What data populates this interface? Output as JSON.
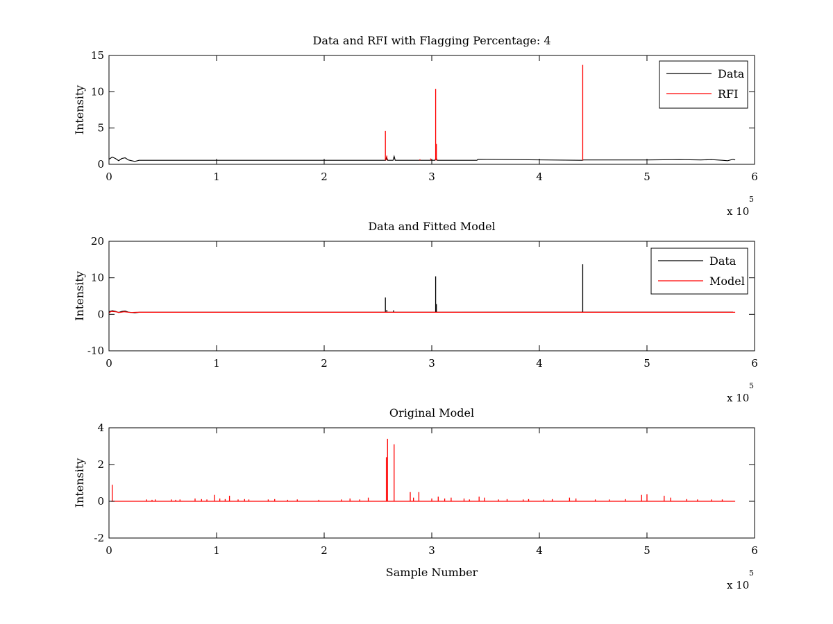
{
  "figure": {
    "background": "#ffffff",
    "axis_color": "#000000"
  },
  "chart_data": [
    {
      "type": "line",
      "title": "Data and RFI with Flagging Percentage: 4",
      "xlabel": "",
      "ylabel": "Intensity",
      "xlim": [
        0,
        600000
      ],
      "ylim": [
        0,
        15
      ],
      "xticks": [
        0,
        1,
        2,
        3,
        4,
        5,
        6
      ],
      "yticks": [
        0,
        5,
        10,
        15
      ],
      "x_exponent": {
        "base": "x 10",
        "power": "5"
      },
      "grid": false,
      "legend": "top-right",
      "series": [
        {
          "name": "Data",
          "color": "#000000",
          "baseline": 0.55,
          "x": [
            0,
            3000,
            6000,
            9000,
            12000,
            15000,
            18000,
            21000,
            24000,
            28000,
            257000,
            258000,
            259000,
            264000,
            265000,
            266000,
            303000,
            304000,
            305000,
            342000,
            343000,
            440000,
            441000,
            500000,
            530000,
            550000,
            560000,
            570000,
            575000,
            580000,
            582000
          ],
          "y": [
            0.7,
            1.0,
            0.8,
            0.5,
            0.8,
            0.9,
            0.6,
            0.5,
            0.4,
            0.55,
            0.55,
            1.0,
            0.55,
            0.55,
            1.1,
            0.55,
            0.55,
            0.9,
            0.55,
            0.55,
            0.7,
            0.55,
            0.6,
            0.6,
            0.65,
            0.6,
            0.65,
            0.55,
            0.5,
            0.7,
            0.6
          ]
        },
        {
          "name": "RFI",
          "color": "#ff0000",
          "spikes": [
            {
              "x": 256900,
              "y": 4.6
            },
            {
              "x": 258200,
              "y": 1.2
            },
            {
              "x": 303600,
              "y": 10.4
            },
            {
              "x": 304300,
              "y": 2.8
            },
            {
              "x": 440300,
              "y": 13.7
            },
            {
              "x": 289000,
              "y": 0.7
            },
            {
              "x": 299000,
              "y": 0.8
            }
          ]
        }
      ]
    },
    {
      "type": "line",
      "title": "Data and Fitted Model",
      "xlabel": "",
      "ylabel": "Intensity",
      "xlim": [
        0,
        600000
      ],
      "ylim": [
        -10,
        20
      ],
      "xticks": [
        0,
        1,
        2,
        3,
        4,
        5,
        6
      ],
      "yticks": [
        -10,
        0,
        10,
        20
      ],
      "x_exponent": {
        "base": "x 10",
        "power": "5"
      },
      "grid": false,
      "legend": "top-right",
      "series": [
        {
          "name": "Data",
          "color": "#000000",
          "baseline": 0.55,
          "x": [
            0,
            3000,
            6000,
            9000,
            12000,
            15000,
            18000,
            21000,
            24000,
            28000,
            580000
          ],
          "y": [
            0.7,
            1.0,
            0.8,
            0.5,
            0.8,
            0.9,
            0.6,
            0.5,
            0.4,
            0.55,
            0.6
          ],
          "spikes": [
            {
              "x": 256900,
              "y": 4.6
            },
            {
              "x": 258200,
              "y": 1.2
            },
            {
              "x": 264500,
              "y": 1.1
            },
            {
              "x": 303600,
              "y": 10.4
            },
            {
              "x": 304300,
              "y": 2.8
            },
            {
              "x": 440300,
              "y": 13.7
            }
          ]
        },
        {
          "name": "Model",
          "color": "#ff0000",
          "x": [
            0,
            2000,
            6000,
            10000,
            14000,
            20000,
            26000,
            582000
          ],
          "y": [
            0.4,
            0.8,
            0.7,
            0.5,
            0.7,
            0.5,
            0.55,
            0.55
          ]
        }
      ]
    },
    {
      "type": "line",
      "title": "Original Model",
      "xlabel": "Sample Number",
      "ylabel": "Intensity",
      "xlim": [
        0,
        600000
      ],
      "ylim": [
        -2,
        4
      ],
      "xticks": [
        0,
        1,
        2,
        3,
        4,
        5,
        6
      ],
      "yticks": [
        -2,
        0,
        2,
        4
      ],
      "x_exponent": {
        "base": "x 10",
        "power": "5"
      },
      "grid": false,
      "legend": "none",
      "series": [
        {
          "name": "",
          "color": "#ff0000",
          "baseline": 0,
          "x_start": 2000,
          "x_end": 582000,
          "spikes": [
            {
              "x": 3000,
              "y": 0.9
            },
            {
              "x": 35000,
              "y": 0.1
            },
            {
              "x": 40000,
              "y": 0.08
            },
            {
              "x": 43000,
              "y": 0.1
            },
            {
              "x": 58000,
              "y": 0.1
            },
            {
              "x": 62000,
              "y": 0.08
            },
            {
              "x": 66000,
              "y": 0.1
            },
            {
              "x": 80000,
              "y": 0.15
            },
            {
              "x": 86000,
              "y": 0.12
            },
            {
              "x": 91000,
              "y": 0.1
            },
            {
              "x": 98000,
              "y": 0.35
            },
            {
              "x": 103000,
              "y": 0.15
            },
            {
              "x": 108000,
              "y": 0.12
            },
            {
              "x": 112000,
              "y": 0.3
            },
            {
              "x": 120000,
              "y": 0.1
            },
            {
              "x": 126000,
              "y": 0.12
            },
            {
              "x": 130000,
              "y": 0.1
            },
            {
              "x": 148000,
              "y": 0.1
            },
            {
              "x": 154000,
              "y": 0.12
            },
            {
              "x": 166000,
              "y": 0.08
            },
            {
              "x": 175000,
              "y": 0.1
            },
            {
              "x": 195000,
              "y": 0.08
            },
            {
              "x": 216000,
              "y": 0.1
            },
            {
              "x": 224000,
              "y": 0.15
            },
            {
              "x": 233000,
              "y": 0.1
            },
            {
              "x": 241000,
              "y": 0.2
            },
            {
              "x": 257800,
              "y": 2.4
            },
            {
              "x": 258900,
              "y": 3.4
            },
            {
              "x": 265000,
              "y": 3.1
            },
            {
              "x": 280000,
              "y": 0.5
            },
            {
              "x": 283000,
              "y": 0.2
            },
            {
              "x": 288000,
              "y": 0.5
            },
            {
              "x": 300000,
              "y": 0.15
            },
            {
              "x": 306000,
              "y": 0.25
            },
            {
              "x": 312000,
              "y": 0.15
            },
            {
              "x": 318000,
              "y": 0.2
            },
            {
              "x": 330000,
              "y": 0.15
            },
            {
              "x": 335000,
              "y": 0.1
            },
            {
              "x": 344000,
              "y": 0.25
            },
            {
              "x": 349000,
              "y": 0.2
            },
            {
              "x": 362000,
              "y": 0.1
            },
            {
              "x": 370000,
              "y": 0.12
            },
            {
              "x": 385000,
              "y": 0.1
            },
            {
              "x": 390000,
              "y": 0.12
            },
            {
              "x": 404000,
              "y": 0.1
            },
            {
              "x": 412000,
              "y": 0.12
            },
            {
              "x": 428000,
              "y": 0.2
            },
            {
              "x": 434000,
              "y": 0.15
            },
            {
              "x": 452000,
              "y": 0.1
            },
            {
              "x": 465000,
              "y": 0.1
            },
            {
              "x": 480000,
              "y": 0.12
            },
            {
              "x": 495000,
              "y": 0.35
            },
            {
              "x": 500000,
              "y": 0.38
            },
            {
              "x": 516000,
              "y": 0.3
            },
            {
              "x": 522000,
              "y": 0.2
            },
            {
              "x": 537000,
              "y": 0.12
            },
            {
              "x": 547000,
              "y": 0.1
            },
            {
              "x": 560000,
              "y": 0.1
            },
            {
              "x": 570000,
              "y": 0.1
            }
          ]
        }
      ]
    }
  ]
}
